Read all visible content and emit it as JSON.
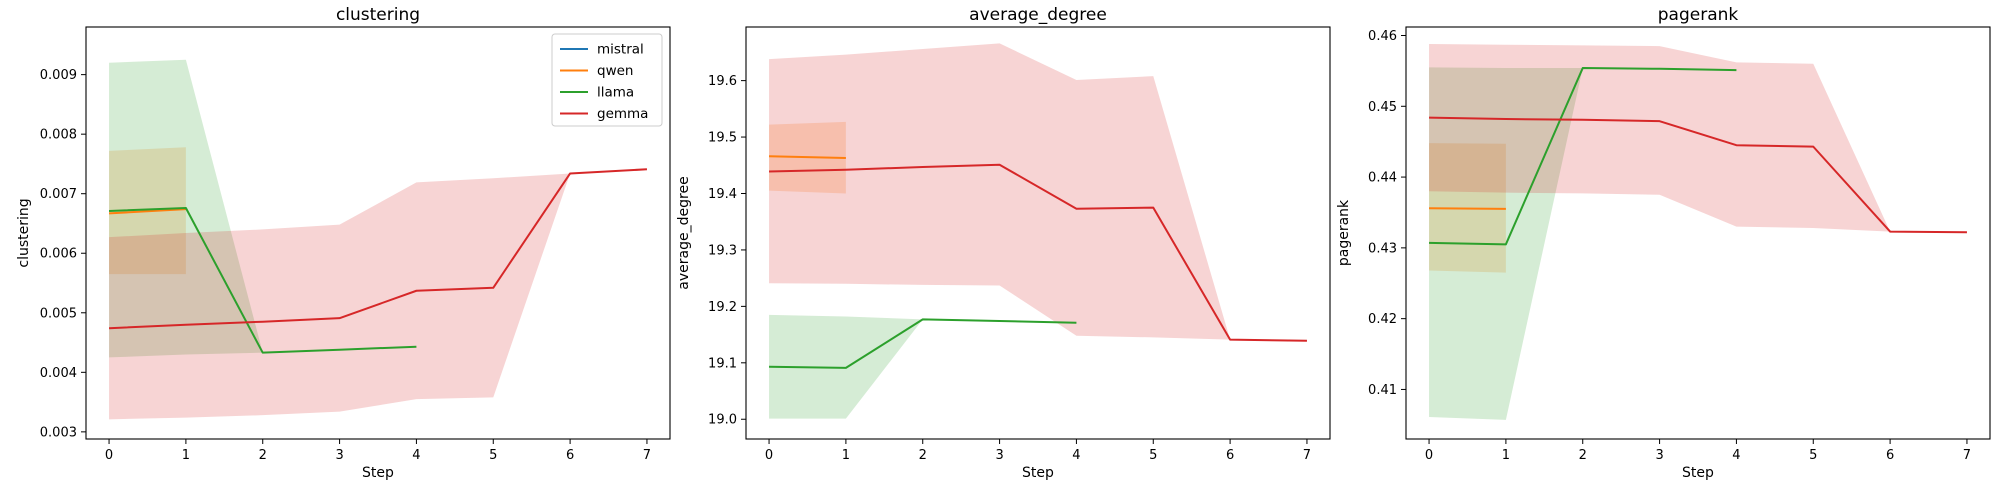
{
  "figure": {
    "legend_location": "top-right (first panel)"
  },
  "colors": {
    "mistral": "#1f77b4",
    "qwen": "#ff7f0e",
    "llama": "#2ca02c",
    "gemma": "#d62728"
  },
  "legend": [
    "mistral",
    "qwen",
    "llama",
    "gemma"
  ],
  "chart_data": [
    {
      "type": "line",
      "title": "clustering",
      "xlabel": "Step",
      "ylabel": "clustering",
      "xlim": [
        -0.3,
        7.3
      ],
      "ylim": [
        0.00288,
        0.0098
      ],
      "xticks": [
        0,
        1,
        2,
        3,
        4,
        5,
        6,
        7
      ],
      "yticks": [
        0.003,
        0.004,
        0.005,
        0.006,
        0.007,
        0.008,
        0.009
      ],
      "ytick_labels": [
        "0.003",
        "0.004",
        "0.005",
        "0.006",
        "0.007",
        "0.008",
        "0.009"
      ],
      "grid": false,
      "legend": "top-right",
      "series": [
        {
          "name": "mistral",
          "x": [],
          "y": [],
          "lower": [],
          "upper": []
        },
        {
          "name": "qwen",
          "x": [
            0,
            1
          ],
          "y": [
            0.00667,
            0.00674
          ],
          "lower": [
            0.00565,
            0.00565
          ],
          "upper": [
            0.00772,
            0.00778
          ]
        },
        {
          "name": "llama",
          "x": [
            0,
            1,
            2,
            3,
            4
          ],
          "y": [
            0.00671,
            0.00676,
            0.00433,
            0.00438,
            0.00443
          ],
          "lower": [
            0.00425,
            0.0043,
            0.00433,
            0.00438,
            0.00443
          ],
          "upper": [
            0.0092,
            0.00925,
            0.00433,
            0.00438,
            0.00443
          ]
        },
        {
          "name": "gemma",
          "x": [
            0,
            1,
            2,
            3,
            4,
            5,
            6,
            7
          ],
          "y": [
            0.00474,
            0.0048,
            0.00485,
            0.00491,
            0.00537,
            0.00542,
            0.00734,
            0.00741
          ],
          "lower": [
            0.00321,
            0.00324,
            0.00328,
            0.00334,
            0.00355,
            0.00358,
            0.00734,
            0.00741
          ],
          "upper": [
            0.00627,
            0.00634,
            0.0064,
            0.00648,
            0.00719,
            0.00726,
            0.00734,
            0.00741
          ]
        }
      ]
    },
    {
      "type": "line",
      "title": "average_degree",
      "xlabel": "Step",
      "ylabel": "average_degree",
      "xlim": [
        -0.3,
        7.3
      ],
      "ylim": [
        18.965,
        19.695
      ],
      "xticks": [
        0,
        1,
        2,
        3,
        4,
        5,
        6,
        7
      ],
      "yticks": [
        19.0,
        19.1,
        19.2,
        19.3,
        19.4,
        19.5,
        19.6
      ],
      "ytick_labels": [
        "19.0",
        "19.1",
        "19.2",
        "19.3",
        "19.4",
        "19.5",
        "19.6"
      ],
      "grid": false,
      "series": [
        {
          "name": "mistral",
          "x": [],
          "y": [],
          "lower": [],
          "upper": []
        },
        {
          "name": "qwen",
          "x": [
            0,
            1
          ],
          "y": [
            19.466,
            19.463
          ],
          "lower": [
            19.405,
            19.4
          ],
          "upper": [
            19.522,
            19.527
          ]
        },
        {
          "name": "llama",
          "x": [
            0,
            1,
            2,
            3,
            4
          ],
          "y": [
            19.093,
            19.091,
            19.177,
            19.174,
            19.171
          ],
          "lower": [
            19.001,
            19.001,
            19.177,
            19.174,
            19.171
          ],
          "upper": [
            19.185,
            19.182,
            19.177,
            19.174,
            19.171
          ]
        },
        {
          "name": "gemma",
          "x": [
            0,
            1,
            2,
            3,
            4,
            5,
            6,
            7
          ],
          "y": [
            19.439,
            19.442,
            19.447,
            19.451,
            19.373,
            19.375,
            19.141,
            19.139
          ],
          "lower": [
            19.241,
            19.24,
            19.238,
            19.237,
            19.148,
            19.145,
            19.141,
            19.139
          ],
          "upper": [
            19.638,
            19.646,
            19.656,
            19.666,
            19.601,
            19.608,
            19.141,
            19.139
          ]
        }
      ]
    },
    {
      "type": "line",
      "title": "pagerank",
      "xlabel": "Step",
      "ylabel": "pagerank",
      "xlim": [
        -0.3,
        7.3
      ],
      "ylim": [
        0.403,
        0.4612
      ],
      "xticks": [
        0,
        1,
        2,
        3,
        4,
        5,
        6,
        7
      ],
      "yticks": [
        0.41,
        0.42,
        0.43,
        0.44,
        0.45,
        0.46
      ],
      "ytick_labels": [
        "0.41",
        "0.42",
        "0.43",
        "0.44",
        "0.45",
        "0.46"
      ],
      "grid": false,
      "series": [
        {
          "name": "mistral",
          "x": [],
          "y": [],
          "lower": [],
          "upper": []
        },
        {
          "name": "qwen",
          "x": [
            0,
            1
          ],
          "y": [
            0.4356,
            0.4355
          ],
          "lower": [
            0.4268,
            0.4265
          ],
          "upper": [
            0.4448,
            0.4447
          ]
        },
        {
          "name": "llama",
          "x": [
            0,
            1,
            2,
            3,
            4
          ],
          "y": [
            0.4307,
            0.4305,
            0.4554,
            0.4553,
            0.4551
          ],
          "lower": [
            0.4061,
            0.4057,
            0.4554,
            0.4553,
            0.4551
          ],
          "upper": [
            0.4555,
            0.4554,
            0.4554,
            0.4553,
            0.4551
          ]
        },
        {
          "name": "gemma",
          "x": [
            0,
            1,
            2,
            3,
            4,
            5,
            6,
            7
          ],
          "y": [
            0.4484,
            0.4482,
            0.4481,
            0.4479,
            0.4445,
            0.4443,
            0.4323,
            0.4322
          ],
          "lower": [
            0.438,
            0.4378,
            0.4377,
            0.4375,
            0.433,
            0.4328,
            0.4323,
            0.4322
          ],
          "upper": [
            0.4588,
            0.4587,
            0.4586,
            0.4585,
            0.4562,
            0.456,
            0.4323,
            0.4322
          ]
        }
      ]
    }
  ]
}
